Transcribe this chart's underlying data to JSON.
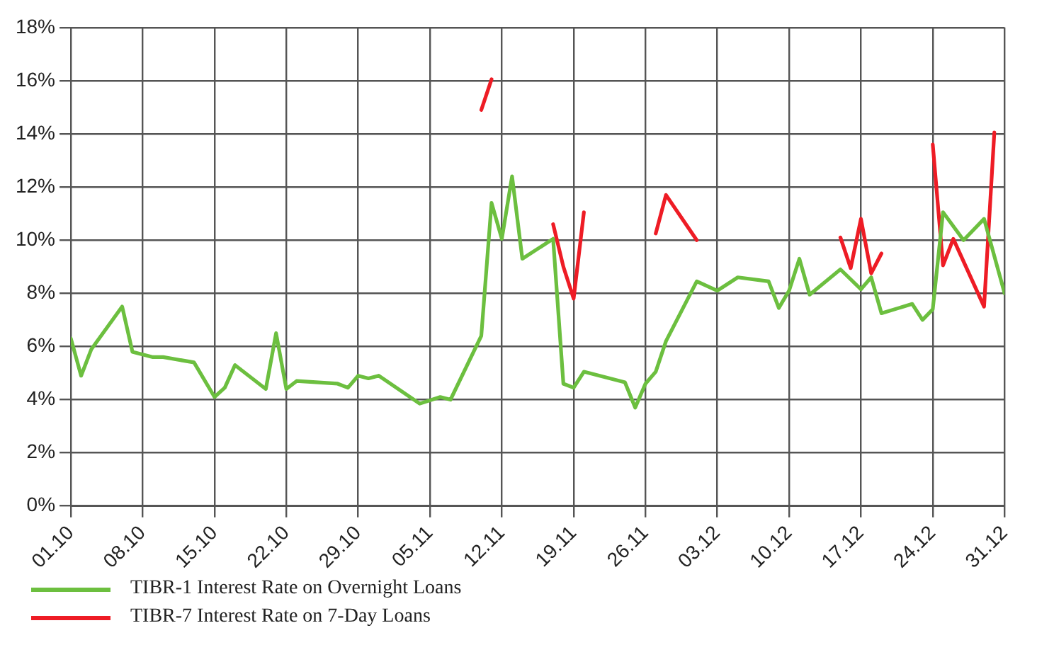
{
  "chart_data": {
    "type": "line",
    "xlim": [
      "--10-01",
      "--12-31"
    ],
    "xticks": [
      {
        "value": "--10-01",
        "label": "01.10"
      },
      {
        "value": "--10-08",
        "label": "08.10"
      },
      {
        "value": "--10-15",
        "label": "15.10"
      },
      {
        "value": "--10-22",
        "label": "22.10"
      },
      {
        "value": "--10-29",
        "label": "29.10"
      },
      {
        "value": "--11-05",
        "label": "05.11"
      },
      {
        "value": "--11-12",
        "label": "12.11"
      },
      {
        "value": "--11-19",
        "label": "19.11"
      },
      {
        "value": "--11-26",
        "label": "26.11"
      },
      {
        "value": "--12-03",
        "label": "03.12"
      },
      {
        "value": "--12-10",
        "label": "10.12"
      },
      {
        "value": "--12-17",
        "label": "17.12"
      },
      {
        "value": "--12-24",
        "label": "24.12"
      },
      {
        "value": "--12-31",
        "label": "31.12"
      }
    ],
    "ylim": [
      0,
      18
    ],
    "yticks": [
      {
        "value": 0,
        "label": "0%"
      },
      {
        "value": 2,
        "label": "2%"
      },
      {
        "value": 4,
        "label": "4%"
      },
      {
        "value": 6,
        "label": "6%"
      },
      {
        "value": 8,
        "label": "8%"
      },
      {
        "value": 10,
        "label": "10%"
      },
      {
        "value": 12,
        "label": "12%"
      },
      {
        "value": 14,
        "label": "14%"
      },
      {
        "value": 16,
        "label": "16%"
      },
      {
        "value": 18,
        "label": "18%"
      }
    ],
    "grid": true,
    "legend": "bottom left",
    "marker": "none",
    "line_style": "solid",
    "series": [
      {
        "name": "TIBR-1 Interest Rate on Overnight Loans",
        "color": "#6cbf3f",
        "x": [
          "--10-01",
          "--10-02",
          "--10-03",
          "--10-06",
          "--10-07",
          "--10-09",
          "--10-10",
          "--10-13",
          "--10-15",
          "--10-16",
          "--10-17",
          "--10-20",
          "--10-21",
          "--10-22",
          "--10-23",
          "--10-27",
          "--10-28",
          "--10-29",
          "--10-30",
          "--10-31",
          "--11-04",
          "--11-06",
          "--11-07",
          "--11-10",
          "--11-11",
          "--11-12",
          "--11-13",
          "--11-14",
          "--11-17",
          "--11-18",
          "--11-19",
          "--11-20",
          "--11-24",
          "--11-25",
          "--11-26",
          "--11-27",
          "--11-28",
          "--12-01",
          "--12-03",
          "--12-05",
          "--12-08",
          "--12-09",
          "--12-10",
          "--12-11",
          "--12-12",
          "--12-15",
          "--12-17",
          "--12-18",
          "--12-19",
          "--12-22",
          "--12-23",
          "--12-24",
          "--12-25",
          "--12-27",
          "--12-29",
          "--12-31"
        ],
        "values": [
          6.3,
          4.9,
          5.9,
          7.5,
          5.8,
          5.6,
          5.6,
          5.4,
          4.1,
          4.45,
          5.3,
          4.4,
          6.5,
          4.4,
          4.7,
          4.6,
          4.45,
          4.9,
          4.8,
          4.9,
          3.85,
          4.1,
          4.0,
          6.4,
          11.4,
          10.05,
          12.4,
          9.3,
          10.05,
          4.6,
          4.45,
          5.05,
          4.65,
          3.7,
          4.6,
          5.05,
          6.2,
          8.45,
          8.1,
          8.6,
          8.45,
          7.45,
          8.1,
          9.3,
          7.95,
          8.9,
          8.15,
          8.6,
          7.25,
          7.6,
          7.0,
          7.4,
          11.05,
          10.0,
          10.8,
          8.0
        ]
      },
      {
        "name": "TIBR-7 Interest Rate on 7-Day Loans",
        "color": "#ee1c25",
        "x": [
          "--11-10",
          "--11-11",
          "--11-14",
          "--11-17",
          "--11-18",
          "--11-19",
          "--11-20",
          "--11-24",
          "--11-27",
          "--11-28",
          "--12-01",
          "--12-08",
          "--12-15",
          "--12-16",
          "--12-17",
          "--12-18",
          "--12-19",
          "--12-22",
          "--12-24",
          "--12-25",
          "--12-26",
          "--12-29",
          "--12-30"
        ],
        "values": [
          14.9,
          16.05,
          null,
          10.6,
          9.0,
          7.8,
          11.05,
          null,
          10.25,
          11.7,
          10.0,
          null,
          10.1,
          8.95,
          10.8,
          8.75,
          9.5,
          null,
          13.6,
          9.05,
          10.05,
          7.5,
          14.05
        ]
      }
    ]
  }
}
